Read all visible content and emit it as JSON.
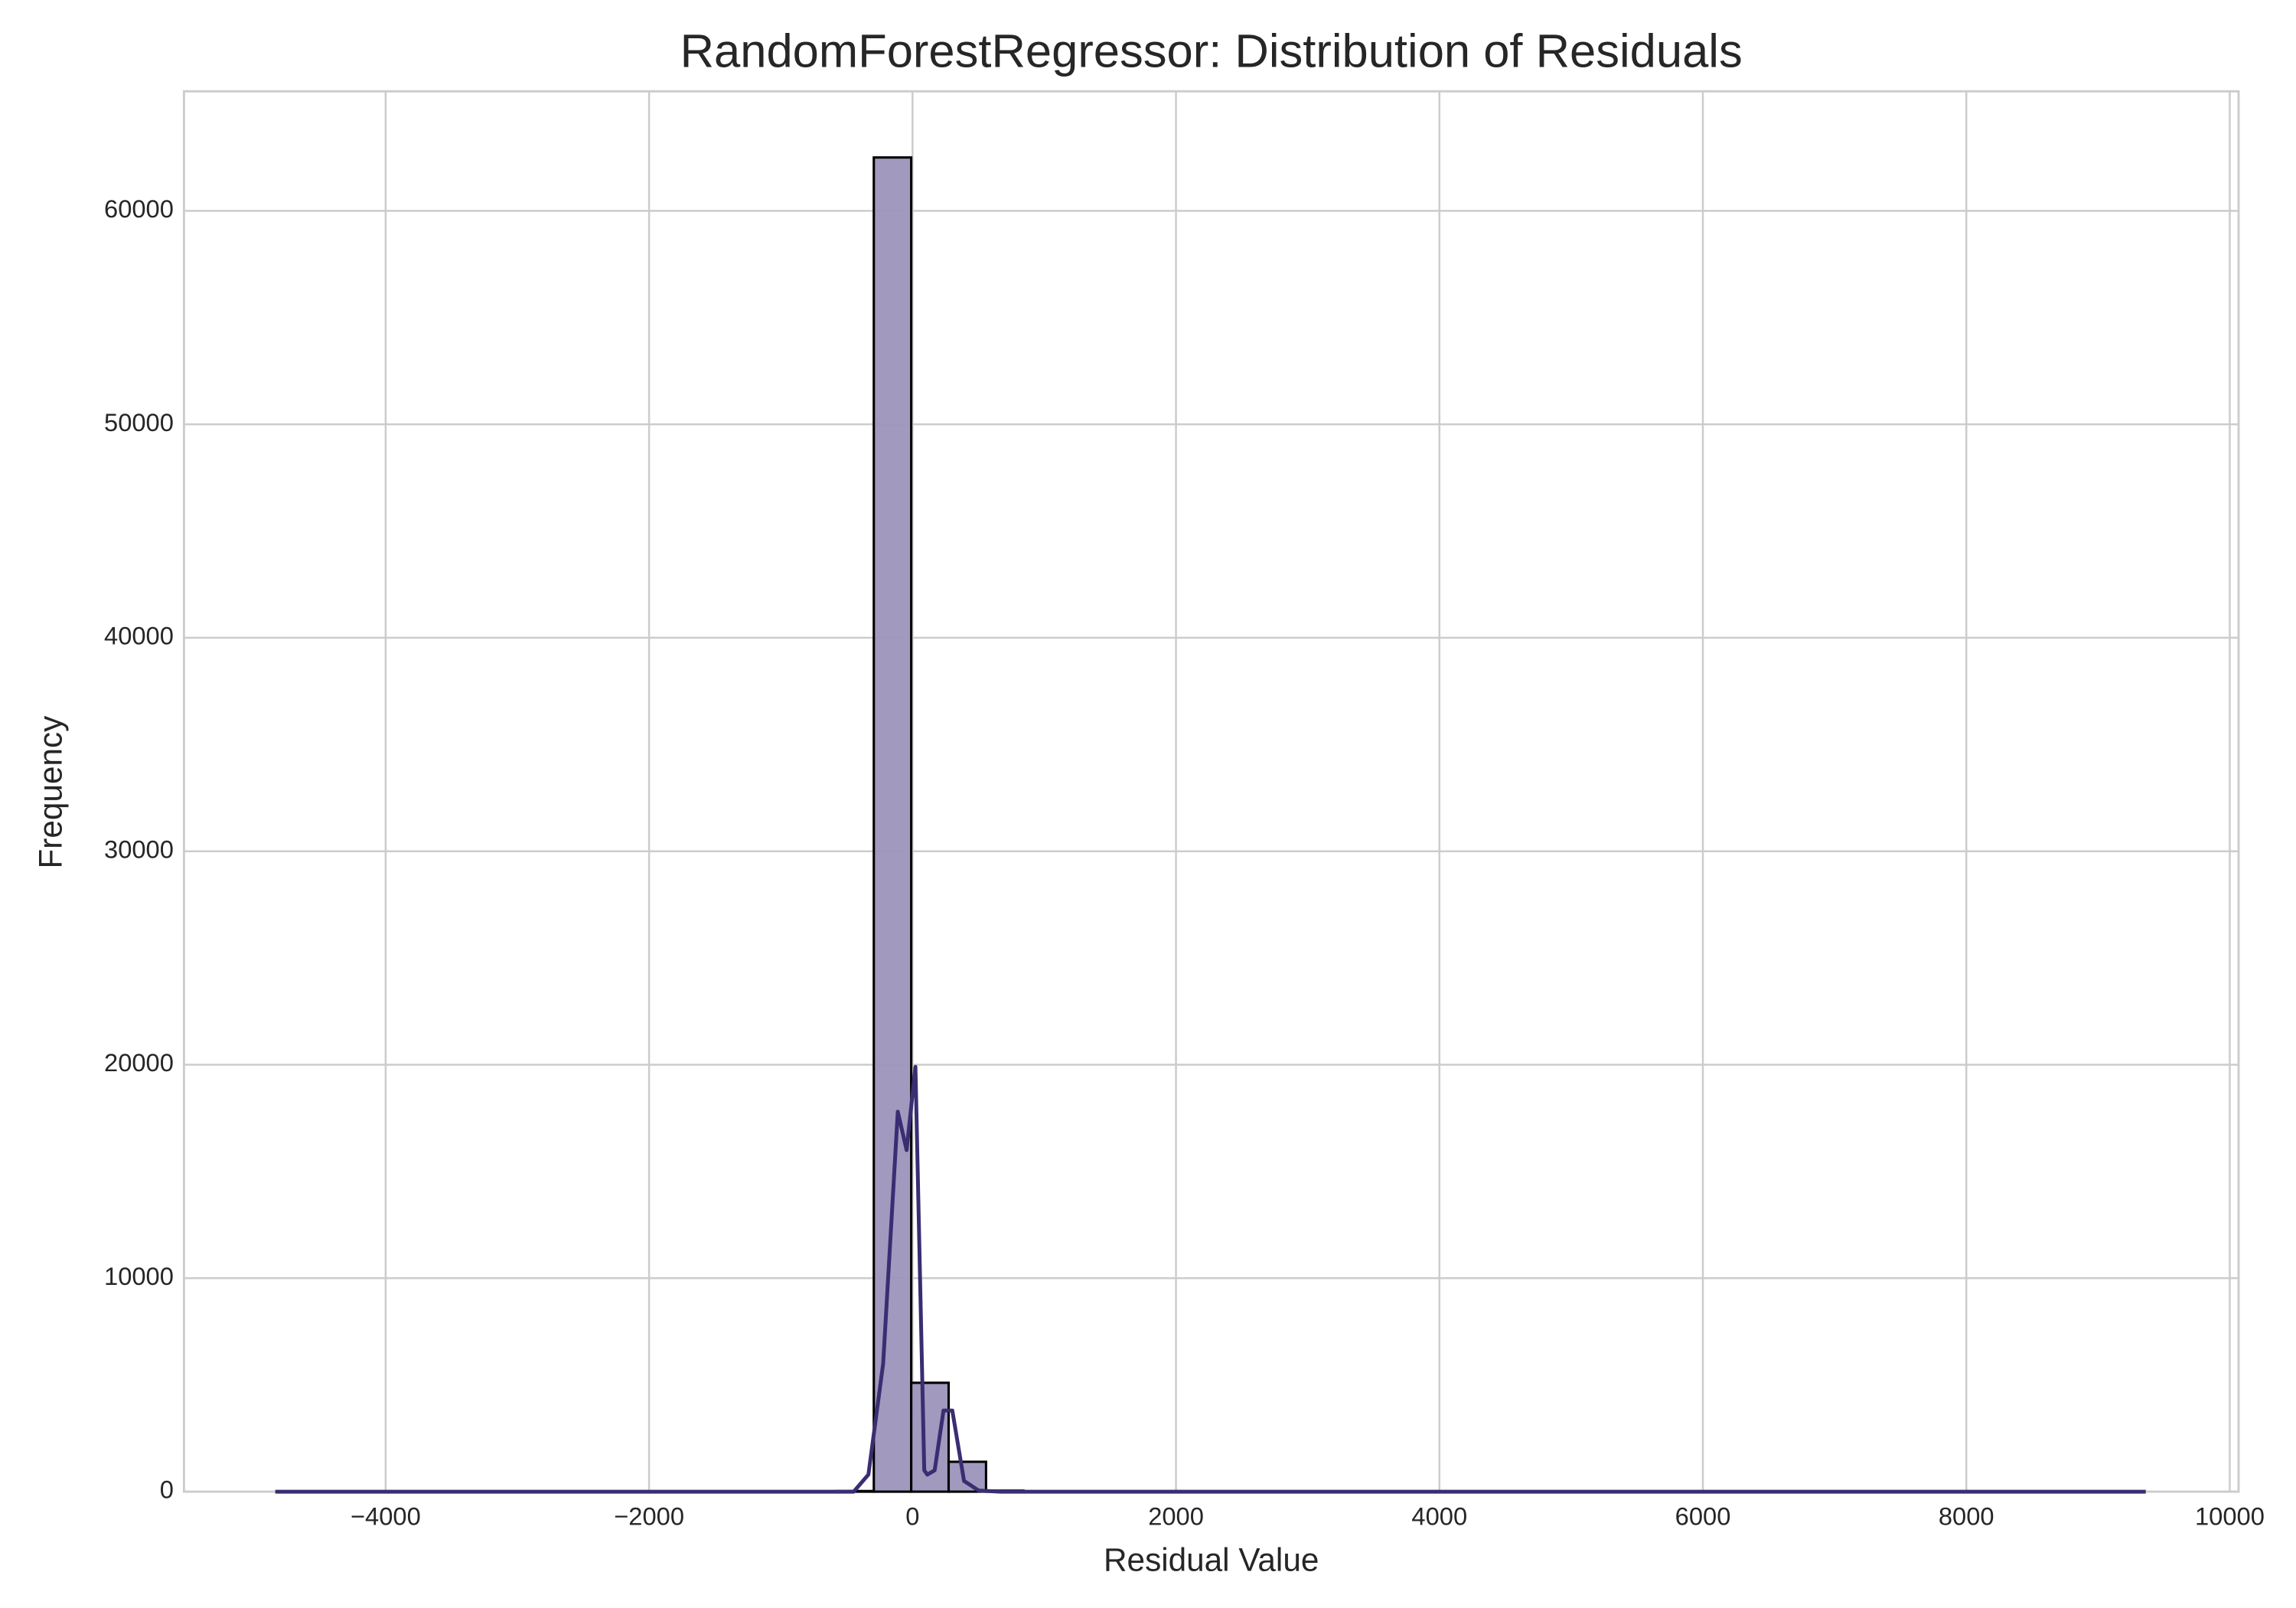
{
  "chart_data": {
    "type": "histogram",
    "title": "RandomForestRegressor: Distribution of Residuals",
    "x_label": "Residual Value",
    "y_label": "Frequency",
    "bins": [
      -4838,
      -4554,
      -4270,
      -3986,
      -3702,
      -3418,
      -3134,
      -2850,
      -2566,
      -2282,
      -1998,
      -1714,
      -1430,
      -1146,
      -862,
      -578,
      -294,
      -10,
      274,
      558,
      842,
      1126,
      1410,
      1694,
      1978,
      2262,
      2546,
      2830,
      3114,
      3398,
      3682,
      3966,
      4250,
      4534,
      4818,
      5102,
      5386,
      5670,
      5954,
      6238,
      6522,
      6806,
      7090,
      7374,
      7658,
      7942,
      8226,
      8510,
      8794,
      9078,
      9362
    ],
    "values": [
      0,
      0,
      0,
      0,
      0,
      0,
      0,
      0,
      0,
      0,
      0,
      0,
      0,
      0,
      0,
      30,
      62500,
      5100,
      1400,
      50,
      0,
      0,
      0,
      0,
      0,
      0,
      0,
      0,
      0,
      0,
      0,
      0,
      0,
      0,
      0,
      0,
      0,
      0,
      0,
      0,
      0,
      0,
      0,
      0,
      0,
      0,
      0,
      0,
      0,
      0
    ],
    "color": "#9d93bb",
    "edge_color": "#000000",
    "kde": {
      "color": "#3b2d72",
      "x": [
        -4838,
        -447,
        -335,
        -223,
        -112,
        -45,
        22,
        89,
        112,
        168,
        235,
        302,
        391,
        503,
        670,
        9362
      ],
      "values": [
        0,
        0,
        800,
        6000,
        17800,
        16000,
        19900,
        1000,
        800,
        1000,
        3800,
        3800,
        500,
        50,
        0,
        0
      ]
    },
    "xlim": [
      -5531,
      10067
    ],
    "ylim": [
      0,
      65600
    ],
    "xticks": [
      {
        "value": -4000,
        "label": "−4000"
      },
      {
        "value": -2000,
        "label": "−2000"
      },
      0,
      2000,
      4000,
      6000,
      8000,
      10000
    ],
    "yticks": [
      0,
      10000,
      20000,
      30000,
      40000,
      50000,
      60000
    ],
    "grid": true
  }
}
